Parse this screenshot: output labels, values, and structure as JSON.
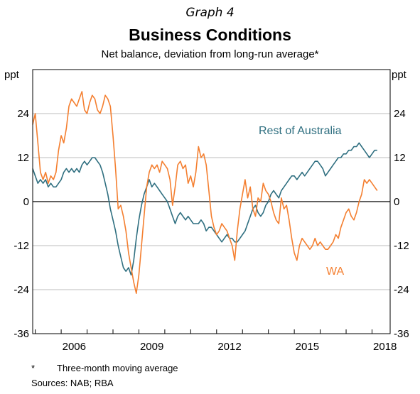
{
  "graph_number": "Graph 4",
  "footnote": {
    "marker": "*",
    "text": "Three-month moving average"
  },
  "sources": "Sources:  NAB; RBA",
  "chart_data": {
    "type": "line",
    "title": "Business Conditions",
    "subtitle": "Net balance, deviation from long-run average*",
    "ylabel_left": "ppt",
    "ylabel_right": "ppt",
    "ylim": [
      -36,
      36
    ],
    "yticks": [
      -36,
      -24,
      -12,
      0,
      12,
      24
    ],
    "xlim": [
      2004.9,
      2018.7
    ],
    "xticks": [
      2006,
      2009,
      2012,
      2015,
      2018
    ],
    "grid": true,
    "colors": {
      "rest_of_australia": "#2f6f80",
      "wa": "#f47f30",
      "grid": "#bcbcbc",
      "zero": "#000000"
    },
    "series": [
      {
        "name": "Rest of Australia",
        "color": "#2f6f80",
        "x": [
          2004.9,
          2005.0,
          2005.1,
          2005.2,
          2005.3,
          2005.4,
          2005.5,
          2005.6,
          2005.7,
          2005.8,
          2005.9,
          2006.0,
          2006.1,
          2006.2,
          2006.3,
          2006.4,
          2006.5,
          2006.6,
          2006.7,
          2006.8,
          2006.9,
          2007.0,
          2007.1,
          2007.2,
          2007.3,
          2007.4,
          2007.5,
          2007.6,
          2007.7,
          2007.8,
          2007.9,
          2008.0,
          2008.1,
          2008.2,
          2008.3,
          2008.4,
          2008.5,
          2008.6,
          2008.7,
          2008.8,
          2008.9,
          2009.0,
          2009.1,
          2009.2,
          2009.3,
          2009.4,
          2009.5,
          2009.6,
          2009.7,
          2009.8,
          2009.9,
          2010.0,
          2010.1,
          2010.2,
          2010.3,
          2010.4,
          2010.5,
          2010.6,
          2010.7,
          2010.8,
          2010.9,
          2011.0,
          2011.1,
          2011.2,
          2011.3,
          2011.4,
          2011.5,
          2011.6,
          2011.7,
          2011.8,
          2011.9,
          2012.0,
          2012.1,
          2012.2,
          2012.3,
          2012.4,
          2012.5,
          2012.6,
          2012.7,
          2012.8,
          2012.9,
          2013.0,
          2013.1,
          2013.2,
          2013.3,
          2013.4,
          2013.5,
          2013.6,
          2013.7,
          2013.8,
          2013.9,
          2014.0,
          2014.1,
          2014.2,
          2014.3,
          2014.4,
          2014.5,
          2014.6,
          2014.7,
          2014.8,
          2014.9,
          2015.0,
          2015.1,
          2015.2,
          2015.3,
          2015.4,
          2015.5,
          2015.6,
          2015.7,
          2015.8,
          2015.9,
          2016.0,
          2016.1,
          2016.2,
          2016.3,
          2016.4,
          2016.5,
          2016.6,
          2016.7,
          2016.8,
          2016.9,
          2017.0,
          2017.1,
          2017.2,
          2017.3,
          2017.4,
          2017.5,
          2017.6,
          2017.7,
          2017.8,
          2017.9,
          2018.0,
          2018.1,
          2018.2
        ],
        "values": [
          9,
          7,
          5,
          6,
          5,
          6,
          4,
          5,
          4,
          4,
          5,
          6,
          8,
          9,
          8,
          9,
          8,
          9,
          8,
          10,
          11,
          10,
          11,
          12,
          12,
          11,
          10,
          8,
          5,
          2,
          -2,
          -5,
          -8,
          -12,
          -15,
          -18,
          -19,
          -18,
          -20,
          -16,
          -10,
          -5,
          -1,
          2,
          4,
          6,
          4,
          5,
          4,
          3,
          2,
          1,
          0,
          -2,
          -4,
          -6,
          -4,
          -3,
          -4,
          -5,
          -4,
          -5,
          -6,
          -6,
          -6,
          -5,
          -6,
          -8,
          -7,
          -7,
          -8,
          -9,
          -10,
          -11,
          -10,
          -9,
          -10,
          -10,
          -11,
          -11,
          -10,
          -9,
          -8,
          -6,
          -4,
          -2,
          -1,
          -3,
          -4,
          -3,
          -1,
          0,
          2,
          3,
          2,
          1,
          3,
          4,
          5,
          6,
          7,
          7,
          6,
          7,
          8,
          7,
          8,
          9,
          10,
          11,
          11,
          10,
          9,
          7,
          8,
          9,
          10,
          11,
          12,
          12,
          13,
          13,
          14,
          14,
          15,
          15,
          16,
          15,
          14,
          13,
          12,
          13,
          14,
          14
        ]
      },
      {
        "name": "WA",
        "color": "#f47f30",
        "x": [
          2004.9,
          2005.0,
          2005.1,
          2005.2,
          2005.3,
          2005.4,
          2005.5,
          2005.6,
          2005.7,
          2005.8,
          2005.9,
          2006.0,
          2006.1,
          2006.2,
          2006.3,
          2006.4,
          2006.5,
          2006.6,
          2006.7,
          2006.8,
          2006.9,
          2007.0,
          2007.1,
          2007.2,
          2007.3,
          2007.4,
          2007.5,
          2007.6,
          2007.7,
          2007.8,
          2007.9,
          2008.0,
          2008.1,
          2008.2,
          2008.3,
          2008.4,
          2008.5,
          2008.6,
          2008.7,
          2008.8,
          2008.9,
          2009.0,
          2009.1,
          2009.2,
          2009.3,
          2009.4,
          2009.5,
          2009.6,
          2009.7,
          2009.8,
          2009.9,
          2010.0,
          2010.1,
          2010.2,
          2010.3,
          2010.4,
          2010.5,
          2010.6,
          2010.7,
          2010.8,
          2010.9,
          2011.0,
          2011.1,
          2011.2,
          2011.3,
          2011.4,
          2011.5,
          2011.6,
          2011.7,
          2011.8,
          2011.9,
          2012.0,
          2012.1,
          2012.2,
          2012.3,
          2012.4,
          2012.5,
          2012.6,
          2012.7,
          2012.8,
          2012.9,
          2013.0,
          2013.1,
          2013.2,
          2013.3,
          2013.4,
          2013.5,
          2013.6,
          2013.7,
          2013.8,
          2013.9,
          2014.0,
          2014.1,
          2014.2,
          2014.3,
          2014.4,
          2014.5,
          2014.6,
          2014.7,
          2014.8,
          2014.9,
          2015.0,
          2015.1,
          2015.2,
          2015.3,
          2015.4,
          2015.5,
          2015.6,
          2015.7,
          2015.8,
          2015.9,
          2016.0,
          2016.1,
          2016.2,
          2016.3,
          2016.4,
          2016.5,
          2016.6,
          2016.7,
          2016.8,
          2016.9,
          2017.0,
          2017.1,
          2017.2,
          2017.3,
          2017.4,
          2017.5,
          2017.6,
          2017.7,
          2017.8,
          2017.9,
          2018.0,
          2018.1,
          2018.2
        ],
        "values": [
          21,
          24,
          16,
          8,
          6,
          8,
          5,
          7,
          6,
          8,
          14,
          18,
          16,
          20,
          26,
          28,
          27,
          26,
          28,
          30,
          25,
          24,
          27,
          29,
          28,
          25,
          24,
          26,
          29,
          28,
          26,
          18,
          9,
          -2,
          -1,
          -4,
          -8,
          -14,
          -18,
          -22,
          -25,
          -20,
          -12,
          -4,
          4,
          8,
          10,
          9,
          10,
          8,
          11,
          10,
          9,
          6,
          -1,
          4,
          10,
          11,
          9,
          10,
          5,
          7,
          4,
          8,
          15,
          12,
          13,
          10,
          3,
          -4,
          -7,
          -9,
          -8,
          -6,
          -7,
          -8,
          -10,
          -12,
          -16,
          -8,
          -2,
          2,
          6,
          1,
          4,
          -2,
          -4,
          1,
          0,
          5,
          3,
          2,
          0,
          -3,
          -5,
          -6,
          1,
          -2,
          -1,
          -5,
          -10,
          -14,
          -16,
          -12,
          -10,
          -11,
          -12,
          -13,
          -12,
          -10,
          -12,
          -11,
          -12,
          -13,
          -13,
          -12,
          -11,
          -9,
          -10,
          -7,
          -5,
          -3,
          -2,
          -4,
          -5,
          -3,
          0,
          2,
          6,
          5,
          6,
          5,
          4,
          3
        ]
      }
    ]
  }
}
